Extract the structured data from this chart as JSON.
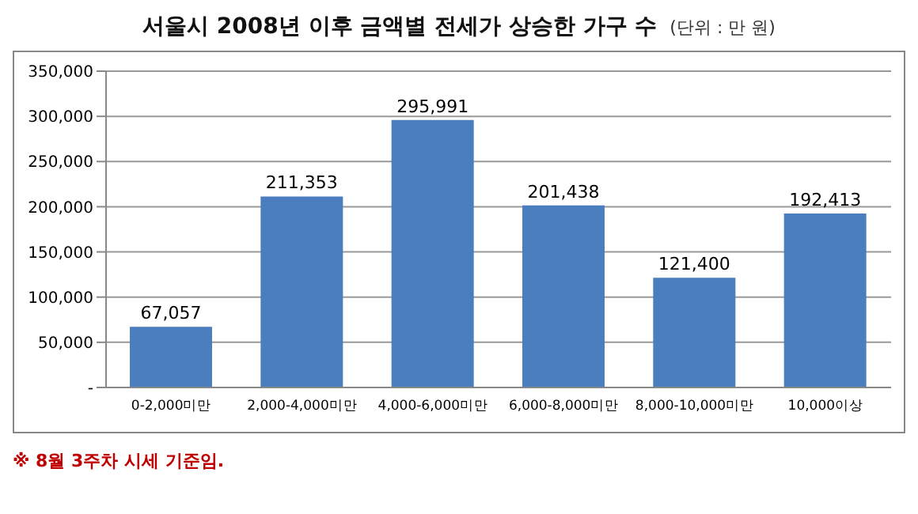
{
  "chart_data": {
    "type": "bar",
    "title": "서울시 2008년 이후 금액별 전세가 상승한 가구 수",
    "subtitle": "(단위 : 만 원)",
    "categories": [
      "0-2,000미만",
      "2,000-4,000미만",
      "4,000-6,000미만",
      "6,000-8,000미만",
      "8,000-10,000미만",
      "10,000이상"
    ],
    "values": [
      67057,
      211353,
      295991,
      201438,
      121400,
      192413
    ],
    "value_labels": [
      "67,057",
      "211,353",
      "295,991",
      "201,438",
      "121,400",
      "192,413"
    ],
    "color": "#4a7ebf",
    "ylim": [
      0,
      350000
    ],
    "yticks": [
      {
        "value": 0,
        "label": "-"
      },
      {
        "value": 50000,
        "label": "50,000"
      },
      {
        "value": 100000,
        "label": "100,000"
      },
      {
        "value": 150000,
        "label": "150,000"
      },
      {
        "value": 200000,
        "label": "200,000"
      },
      {
        "value": 250000,
        "label": "250,000"
      },
      {
        "value": 300000,
        "label": "300,000"
      },
      {
        "value": 350000,
        "label": "350,000"
      }
    ],
    "grid": "y",
    "annotations": [
      "※ 8월 3주차 시세 기준임."
    ]
  }
}
